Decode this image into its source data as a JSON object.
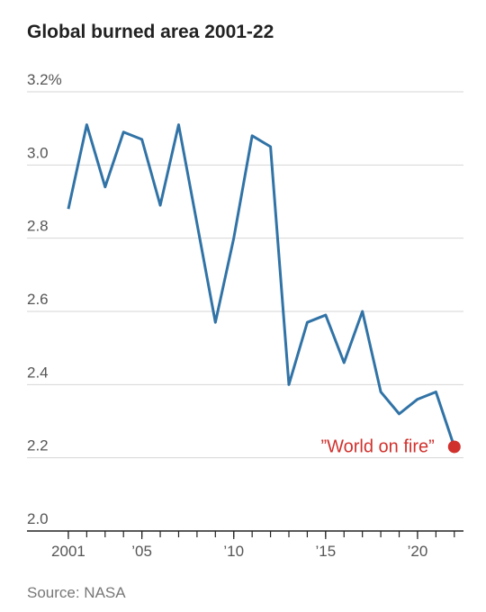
{
  "chart_data": {
    "type": "line",
    "title": "Global burned area 2001-22",
    "source": "Source: NASA",
    "x": [
      2001,
      2002,
      2003,
      2004,
      2005,
      2006,
      2007,
      2008,
      2009,
      2010,
      2011,
      2012,
      2013,
      2014,
      2015,
      2016,
      2017,
      2018,
      2019,
      2020,
      2021,
      2022
    ],
    "values": [
      2.88,
      3.11,
      2.94,
      3.09,
      3.07,
      2.89,
      3.11,
      2.84,
      2.57,
      2.8,
      3.08,
      3.05,
      2.4,
      2.57,
      2.59,
      2.46,
      2.6,
      2.38,
      2.32,
      2.36,
      2.38,
      2.23
    ],
    "color": "#3173a6",
    "highlight_color": "#d0312d",
    "annotation": "”World on fire”",
    "xlim": [
      1998.75,
      2022.5
    ],
    "xticks": [
      {
        "value": 2001,
        "label": "2001"
      },
      {
        "value": 2005,
        "label": "’05"
      },
      {
        "value": 2010,
        "label": "’10"
      },
      {
        "value": 2015,
        "label": "’15"
      },
      {
        "value": 2020,
        "label": "’20"
      }
    ],
    "ylim": [
      2.0,
      3.2
    ],
    "yticks": [
      {
        "value": 2.0,
        "label": "2.0"
      },
      2.2,
      2.4,
      2.6,
      2.8,
      {
        "value": 3.0,
        "label": "3.0"
      },
      {
        "value": 3.2,
        "label": "3.2%"
      }
    ],
    "grid": true
  }
}
